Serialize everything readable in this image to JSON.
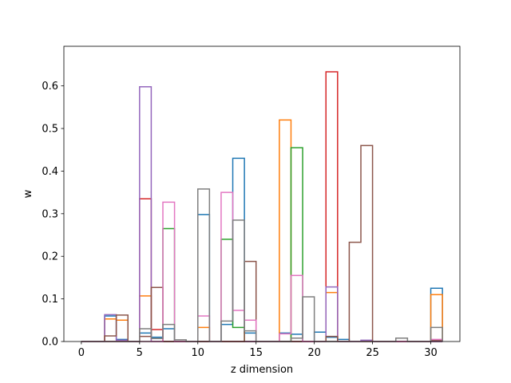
{
  "chart_data": {
    "type": "bar",
    "histtype": "step",
    "xlabel": "z dimension",
    "ylabel": "w",
    "xlim": [
      -1.5,
      32.5
    ],
    "ylim": [
      0,
      0.693
    ],
    "grid": false,
    "xticks": [
      0,
      5,
      10,
      15,
      20,
      25,
      30
    ],
    "yticks": [
      0.0,
      0.1,
      0.2,
      0.3,
      0.4,
      0.5,
      0.6
    ],
    "bin_edges": [
      0,
      1,
      2,
      3,
      4,
      5,
      6,
      7,
      8,
      9,
      10,
      11,
      12,
      13,
      14,
      15,
      16,
      17,
      18,
      19,
      20,
      21,
      22,
      23,
      24,
      25,
      26,
      27,
      28,
      29,
      30,
      31
    ],
    "series": [
      {
        "color": "#1f77b4",
        "values": [
          0,
          0,
          0.06,
          0.005,
          0,
          0.02,
          0.01,
          0.03,
          0,
          0,
          0.298,
          0,
          0.04,
          0.43,
          0.02,
          0,
          0,
          0.02,
          0.017,
          0,
          0.022,
          0.01,
          0.005,
          0,
          0,
          0,
          0,
          0,
          0,
          0,
          0.125
        ]
      },
      {
        "color": "#ff7f0e",
        "values": [
          0,
          0,
          0.053,
          0.05,
          0,
          0.107,
          0,
          0,
          0,
          0,
          0.033,
          0,
          0,
          0,
          0,
          0,
          0,
          0.52,
          0,
          0,
          0,
          0.115,
          0,
          0,
          0,
          0,
          0,
          0,
          0,
          0,
          0.11
        ]
      },
      {
        "color": "#2ca02c",
        "values": [
          0,
          0,
          0,
          0,
          0,
          0,
          0,
          0.265,
          0,
          0,
          0,
          0,
          0.24,
          0.033,
          0,
          0,
          0,
          0,
          0.455,
          0,
          0,
          0,
          0,
          0,
          0,
          0,
          0,
          0,
          0,
          0,
          0
        ]
      },
      {
        "color": "#d62728",
        "values": [
          0,
          0,
          0,
          0,
          0,
          0.335,
          0.028,
          0,
          0,
          0,
          0,
          0,
          0,
          0,
          0,
          0,
          0,
          0,
          0,
          0,
          0,
          0.633,
          0,
          0,
          0,
          0,
          0,
          0,
          0,
          0,
          0
        ]
      },
      {
        "color": "#9467bd",
        "values": [
          0,
          0,
          0.063,
          0.003,
          0,
          0.598,
          0,
          0,
          0,
          0,
          0,
          0,
          0,
          0,
          0,
          0,
          0,
          0,
          0,
          0,
          0,
          0.128,
          0,
          0,
          0.003,
          0,
          0,
          0,
          0,
          0,
          0
        ]
      },
      {
        "color": "#8c564b",
        "values": [
          0,
          0,
          0.013,
          0.062,
          0,
          0.012,
          0.127,
          0,
          0,
          0,
          0,
          0,
          0,
          0,
          0.188,
          0,
          0,
          0,
          0,
          0,
          0,
          0.012,
          0,
          0.233,
          0.46,
          0,
          0,
          0,
          0,
          0,
          0.003
        ]
      },
      {
        "color": "#e377c2",
        "values": [
          0,
          0,
          0,
          0,
          0,
          0,
          0,
          0.327,
          0,
          0,
          0.06,
          0,
          0.35,
          0.073,
          0.05,
          0,
          0,
          0.018,
          0.155,
          0,
          0,
          0,
          0,
          0,
          0,
          0,
          0,
          0,
          0,
          0,
          0.005
        ]
      },
      {
        "color": "#7f7f7f",
        "values": [
          0,
          0,
          0,
          0,
          0,
          0.03,
          0.007,
          0.04,
          0.004,
          0,
          0.358,
          0,
          0.048,
          0.285,
          0.025,
          0,
          0,
          0,
          0.008,
          0.105,
          0,
          0,
          0,
          0,
          0,
          0,
          0,
          0.008,
          0,
          0,
          0.033
        ]
      }
    ]
  }
}
